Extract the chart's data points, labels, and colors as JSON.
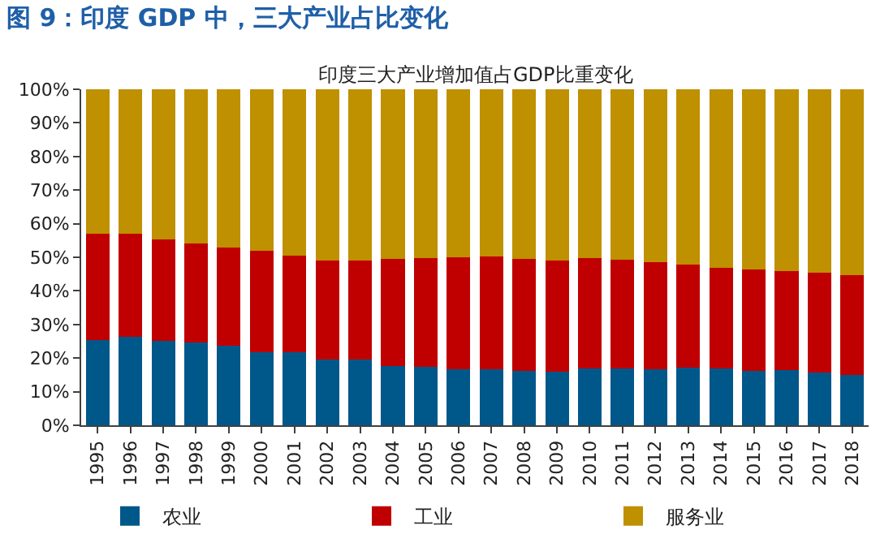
{
  "chart_data": {
    "type": "bar",
    "title": "图 9：印度 GDP 中，三大产业占比变化",
    "subtitle": "印度三大产业增加值占GDP比重变化",
    "categories": [
      "1995",
      "1996",
      "1997",
      "1998",
      "1999",
      "2000",
      "2001",
      "2002",
      "2003",
      "2004",
      "2005",
      "2006",
      "2007",
      "2008",
      "2009",
      "2010",
      "2011",
      "2012",
      "2013",
      "2014",
      "2015",
      "2016",
      "2017",
      "2018"
    ],
    "stacked": true,
    "series": [
      {
        "name": "农业",
        "color": "#00578a",
        "values": [
          25.4,
          26.3,
          25.1,
          24.7,
          23.7,
          21.7,
          21.7,
          19.6,
          19.6,
          17.6,
          17.3,
          16.6,
          16.6,
          16.3,
          15.9,
          16.8,
          16.8,
          16.6,
          17.1,
          16.8,
          16.1,
          16.4,
          15.8,
          14.9
        ]
      },
      {
        "name": "工业",
        "color": "#c00000",
        "values": [
          31.6,
          30.7,
          30.1,
          29.5,
          29.2,
          30.2,
          28.8,
          29.5,
          29.5,
          32.0,
          32.5,
          33.4,
          33.6,
          33.2,
          33.2,
          33.0,
          32.5,
          31.9,
          30.7,
          30.0,
          30.2,
          29.5,
          29.5,
          29.7
        ]
      },
      {
        "name": "服务业",
        "color": "#bf9000",
        "values": [
          43.0,
          43.0,
          44.8,
          45.8,
          47.1,
          48.1,
          49.5,
          50.9,
          50.9,
          50.4,
          50.2,
          50.0,
          49.8,
          50.5,
          50.9,
          50.2,
          50.7,
          51.5,
          52.2,
          53.2,
          53.7,
          54.1,
          54.7,
          55.4
        ]
      }
    ],
    "ylim": [
      0,
      100
    ],
    "yticks": [
      {
        "value": 0,
        "label": "0%"
      },
      {
        "value": 10,
        "label": "10%"
      },
      {
        "value": 20,
        "label": "20%"
      },
      {
        "value": 30,
        "label": "30%"
      },
      {
        "value": 40,
        "label": "40%"
      },
      {
        "value": 50,
        "label": "50%"
      },
      {
        "value": 60,
        "label": "60%"
      },
      {
        "value": 70,
        "label": "70%"
      },
      {
        "value": 80,
        "label": "80%"
      },
      {
        "value": 90,
        "label": "90%"
      },
      {
        "value": 100,
        "label": "100%"
      }
    ],
    "grid": false,
    "legend": "bottom"
  }
}
